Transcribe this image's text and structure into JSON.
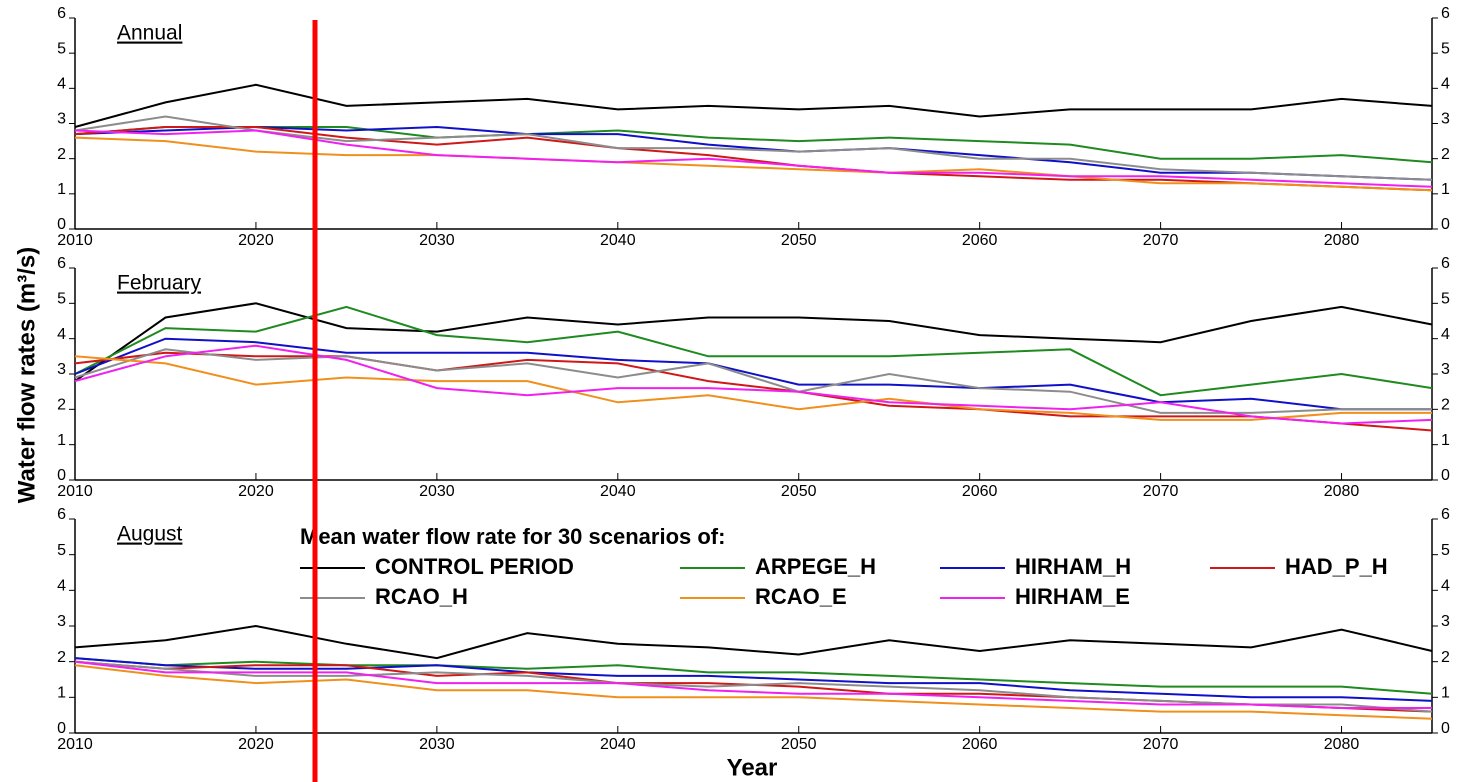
{
  "y_label": "Water flow rates (m³/s)",
  "x_label": "Year",
  "legend_title": "Mean water flow rate for 30 scenarios of:",
  "chart_data": [
    {
      "type": "line",
      "title": "Annual",
      "x": [
        2010,
        2015,
        2020,
        2025,
        2030,
        2035,
        2040,
        2045,
        2050,
        2055,
        2060,
        2065,
        2070,
        2075,
        2080,
        2085
      ],
      "xlim": [
        2010,
        2085
      ],
      "xticks": [
        2010,
        2020,
        2030,
        2040,
        2050,
        2060,
        2070,
        2080
      ],
      "ylim": [
        0,
        6
      ],
      "yticks": [
        0,
        1,
        2,
        3,
        4,
        5,
        6
      ],
      "series": [
        {
          "name": "CONTROL PERIOD",
          "color": "#000000",
          "values": [
            2.9,
            3.6,
            4.1,
            3.5,
            3.6,
            3.7,
            3.4,
            3.5,
            3.4,
            3.5,
            3.2,
            3.4,
            3.4,
            3.4,
            3.7,
            3.5
          ]
        },
        {
          "name": "ARPEGE_H",
          "color": "#1f8a1f",
          "values": [
            2.7,
            2.9,
            2.9,
            2.9,
            2.6,
            2.7,
            2.8,
            2.6,
            2.5,
            2.6,
            2.5,
            2.4,
            2.0,
            2.0,
            2.1,
            1.9
          ]
        },
        {
          "name": "HIRHAM_H",
          "color": "#1010c8",
          "values": [
            2.7,
            2.8,
            2.9,
            2.8,
            2.9,
            2.7,
            2.7,
            2.4,
            2.2,
            2.3,
            2.1,
            1.9,
            1.6,
            1.6,
            1.5,
            1.4
          ]
        },
        {
          "name": "HAD_P_H",
          "color": "#d01818",
          "values": [
            2.7,
            2.9,
            2.9,
            2.6,
            2.4,
            2.6,
            2.3,
            2.1,
            1.8,
            1.6,
            1.5,
            1.4,
            1.4,
            1.3,
            1.2,
            1.1
          ]
        },
        {
          "name": "RCAO_H",
          "color": "#8c8c8c",
          "values": [
            2.8,
            3.2,
            2.8,
            2.5,
            2.6,
            2.7,
            2.3,
            2.3,
            2.2,
            2.3,
            2.0,
            2.0,
            1.7,
            1.6,
            1.5,
            1.4
          ]
        },
        {
          "name": "RCAO_E",
          "color": "#f0901c",
          "values": [
            2.6,
            2.5,
            2.2,
            2.1,
            2.1,
            2.0,
            1.9,
            1.8,
            1.7,
            1.6,
            1.7,
            1.5,
            1.3,
            1.3,
            1.2,
            1.1
          ]
        },
        {
          "name": "HIRHAM_E",
          "color": "#f020f0",
          "values": [
            2.8,
            2.7,
            2.8,
            2.4,
            2.1,
            2.0,
            1.9,
            2.0,
            1.8,
            1.6,
            1.6,
            1.5,
            1.5,
            1.4,
            1.3,
            1.2
          ]
        }
      ]
    },
    {
      "type": "line",
      "title": "February",
      "x": [
        2010,
        2015,
        2020,
        2025,
        2030,
        2035,
        2040,
        2045,
        2050,
        2055,
        2060,
        2065,
        2070,
        2075,
        2080,
        2085
      ],
      "xlim": [
        2010,
        2085
      ],
      "xticks": [
        2010,
        2020,
        2030,
        2040,
        2050,
        2060,
        2070,
        2080
      ],
      "ylim": [
        0,
        6
      ],
      "yticks": [
        0,
        1,
        2,
        3,
        4,
        5,
        6
      ],
      "series": [
        {
          "name": "CONTROL PERIOD",
          "color": "#000000",
          "values": [
            2.8,
            4.6,
            5.0,
            4.3,
            4.2,
            4.6,
            4.4,
            4.6,
            4.6,
            4.5,
            4.1,
            4.0,
            3.9,
            4.5,
            4.9,
            4.4
          ]
        },
        {
          "name": "ARPEGE_H",
          "color": "#1f8a1f",
          "values": [
            3.0,
            4.3,
            4.2,
            4.9,
            4.1,
            3.9,
            4.2,
            3.5,
            3.5,
            3.5,
            3.6,
            3.7,
            2.4,
            2.7,
            3.0,
            2.6
          ]
        },
        {
          "name": "HIRHAM_H",
          "color": "#1010c8",
          "values": [
            3.0,
            4.0,
            3.9,
            3.6,
            3.6,
            3.6,
            3.4,
            3.3,
            2.7,
            2.7,
            2.6,
            2.7,
            2.2,
            2.3,
            2.0,
            2.0
          ]
        },
        {
          "name": "HAD_P_H",
          "color": "#d01818",
          "values": [
            3.3,
            3.6,
            3.5,
            3.5,
            3.1,
            3.4,
            3.3,
            2.8,
            2.5,
            2.1,
            2.0,
            1.8,
            1.8,
            1.8,
            1.6,
            1.4
          ]
        },
        {
          "name": "RCAO_H",
          "color": "#8c8c8c",
          "values": [
            2.9,
            3.7,
            3.4,
            3.5,
            3.1,
            3.3,
            2.9,
            3.3,
            2.5,
            3.0,
            2.6,
            2.5,
            1.9,
            1.9,
            2.0,
            2.0
          ]
        },
        {
          "name": "RCAO_E",
          "color": "#f0901c",
          "values": [
            3.5,
            3.3,
            2.7,
            2.9,
            2.8,
            2.8,
            2.2,
            2.4,
            2.0,
            2.3,
            2.0,
            1.9,
            1.7,
            1.7,
            1.9,
            1.9
          ]
        },
        {
          "name": "HIRHAM_E",
          "color": "#f020f0",
          "values": [
            2.8,
            3.5,
            3.8,
            3.4,
            2.6,
            2.4,
            2.6,
            2.6,
            2.5,
            2.2,
            2.1,
            2.0,
            2.2,
            1.8,
            1.6,
            1.7
          ]
        }
      ]
    },
    {
      "type": "line",
      "title": "August",
      "x": [
        2010,
        2015,
        2020,
        2025,
        2030,
        2035,
        2040,
        2045,
        2050,
        2055,
        2060,
        2065,
        2070,
        2075,
        2080,
        2085
      ],
      "xlim": [
        2010,
        2085
      ],
      "xticks": [
        2010,
        2020,
        2030,
        2040,
        2050,
        2060,
        2070,
        2080
      ],
      "ylim": [
        0,
        6
      ],
      "yticks": [
        0,
        1,
        2,
        3,
        4,
        5,
        6
      ],
      "series": [
        {
          "name": "CONTROL PERIOD",
          "color": "#000000",
          "values": [
            2.4,
            2.6,
            3.0,
            2.5,
            2.1,
            2.8,
            2.5,
            2.4,
            2.2,
            2.6,
            2.3,
            2.6,
            2.5,
            2.4,
            2.9,
            2.3
          ]
        },
        {
          "name": "ARPEGE_H",
          "color": "#1f8a1f",
          "values": [
            2.1,
            1.9,
            2.0,
            1.9,
            1.9,
            1.8,
            1.9,
            1.7,
            1.7,
            1.6,
            1.5,
            1.4,
            1.3,
            1.3,
            1.3,
            1.1
          ]
        },
        {
          "name": "HIRHAM_H",
          "color": "#1010c8",
          "values": [
            2.1,
            1.9,
            1.8,
            1.8,
            1.9,
            1.7,
            1.6,
            1.6,
            1.5,
            1.4,
            1.4,
            1.2,
            1.1,
            1.0,
            1.0,
            0.9
          ]
        },
        {
          "name": "HAD_P_H",
          "color": "#d01818",
          "values": [
            2.0,
            1.8,
            1.9,
            1.9,
            1.6,
            1.7,
            1.4,
            1.4,
            1.3,
            1.1,
            1.1,
            1.0,
            0.9,
            0.8,
            0.7,
            0.6
          ]
        },
        {
          "name": "RCAO_H",
          "color": "#8c8c8c",
          "values": [
            2.0,
            1.8,
            1.6,
            1.6,
            1.7,
            1.6,
            1.4,
            1.3,
            1.4,
            1.3,
            1.2,
            1.0,
            0.9,
            0.8,
            0.8,
            0.6
          ]
        },
        {
          "name": "RCAO_E",
          "color": "#f0901c",
          "values": [
            1.9,
            1.6,
            1.4,
            1.5,
            1.2,
            1.2,
            1.0,
            1.0,
            1.0,
            0.9,
            0.8,
            0.7,
            0.6,
            0.6,
            0.5,
            0.4
          ]
        },
        {
          "name": "HIRHAM_E",
          "color": "#f020f0",
          "values": [
            2.0,
            1.7,
            1.7,
            1.7,
            1.4,
            1.4,
            1.4,
            1.2,
            1.1,
            1.1,
            1.0,
            0.9,
            0.8,
            0.8,
            0.7,
            0.7
          ]
        }
      ]
    }
  ]
}
